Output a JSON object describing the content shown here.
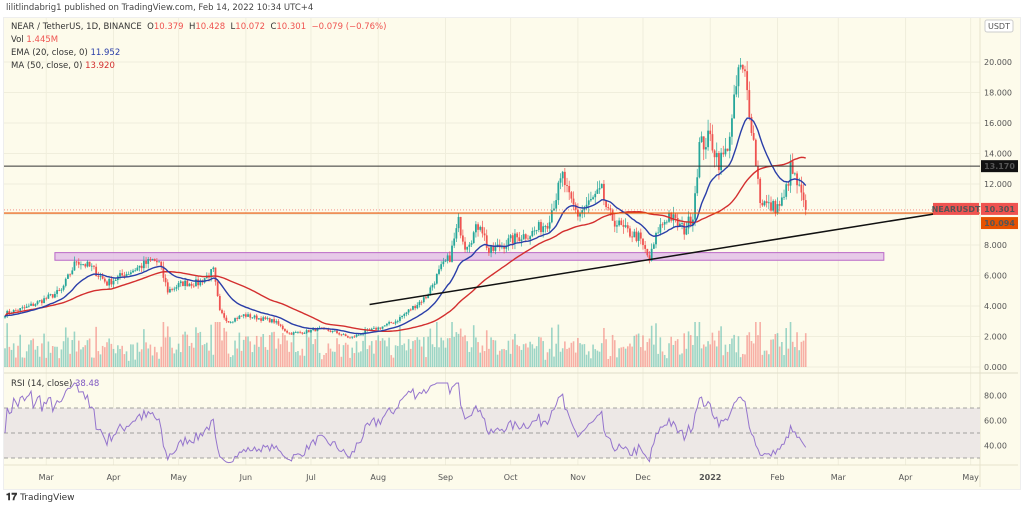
{
  "header": {
    "published": "lilitlindabrig1 published on TradingView.com, Feb 14, 2022 10:34 UTC+4"
  },
  "legend": {
    "symbol": "NEAR / TetherUS, 1D, BINANCE",
    "o_label": "O",
    "o": "10.379",
    "h_label": "H",
    "h": "10.428",
    "l_label": "L",
    "l": "10.072",
    "c_label": "C",
    "c": "10.301",
    "change": "−0.079 (−0.76%)",
    "vol_label": "Vol",
    "vol": "1.445M",
    "ema_label": "EMA (20, close, 0)",
    "ema": "11.952",
    "ma_label": "MA (50, close, 0)",
    "ma": "13.920",
    "rsi_label": "RSI (14, close)",
    "rsi": "38.48"
  },
  "logo": "TradingView",
  "colors": {
    "up": "#26a69a",
    "down": "#ef5350",
    "ema": "#2a3ea8",
    "ma": "#d32f2f",
    "rsi": "#9575cd",
    "zone": "#e1bee7",
    "resistance": "#333333",
    "support": "#e65100"
  },
  "chart_data": {
    "type": "candlestick",
    "price_axis": {
      "unit": "USDT",
      "ticks": [
        "0.000",
        "2.000",
        "4.000",
        "6.000",
        "8.000",
        "12.000",
        "14.000",
        "16.000",
        "18.000",
        "20.000"
      ],
      "range": [
        0,
        21.5
      ]
    },
    "rsi_axis": {
      "ticks": [
        "40.00",
        "60.00",
        "80.00"
      ],
      "bands": [
        30,
        50,
        70
      ]
    },
    "time_ticks": [
      {
        "label": "Mar",
        "date": "2021-03-01"
      },
      {
        "label": "Apr",
        "date": "2021-04-01"
      },
      {
        "label": "May",
        "date": "2021-05-01"
      },
      {
        "label": "Jun",
        "date": "2021-06-01"
      },
      {
        "label": "Jul",
        "date": "2021-07-01"
      },
      {
        "label": "Aug",
        "date": "2021-08-01"
      },
      {
        "label": "Sep",
        "date": "2021-09-01"
      },
      {
        "label": "Oct",
        "date": "2021-10-01"
      },
      {
        "label": "Nov",
        "date": "2021-11-01"
      },
      {
        "label": "Dec",
        "date": "2021-12-01"
      },
      {
        "label": "2022",
        "date": "2022-01-01"
      },
      {
        "label": "Feb",
        "date": "2022-02-01"
      },
      {
        "label": "Mar",
        "date": "2022-03-01"
      },
      {
        "label": "Apr",
        "date": "2022-04-01"
      },
      {
        "label": "May",
        "date": "2022-05-01"
      }
    ],
    "closes": [
      [
        "2021-02-10",
        3.5
      ],
      [
        "2021-02-20",
        3.9
      ],
      [
        "2021-03-01",
        4.5
      ],
      [
        "2021-03-08",
        5.0
      ],
      [
        "2021-03-15",
        7.0
      ],
      [
        "2021-03-22",
        6.5
      ],
      [
        "2021-03-29",
        5.5
      ],
      [
        "2021-04-05",
        6.0
      ],
      [
        "2021-04-12",
        6.5
      ],
      [
        "2021-04-19",
        7.0
      ],
      [
        "2021-04-22",
        6.8
      ],
      [
        "2021-04-26",
        5.0
      ],
      [
        "2021-05-03",
        5.5
      ],
      [
        "2021-05-10",
        5.5
      ],
      [
        "2021-05-17",
        6.3
      ],
      [
        "2021-05-20",
        3.6
      ],
      [
        "2021-05-24",
        3.0
      ],
      [
        "2021-05-31",
        3.4
      ],
      [
        "2021-06-07",
        3.2
      ],
      [
        "2021-06-14",
        3.0
      ],
      [
        "2021-06-21",
        2.2
      ],
      [
        "2021-06-28",
        2.3
      ],
      [
        "2021-07-05",
        2.5
      ],
      [
        "2021-07-12",
        2.3
      ],
      [
        "2021-07-19",
        1.9
      ],
      [
        "2021-07-26",
        2.3
      ],
      [
        "2021-08-02",
        2.6
      ],
      [
        "2021-08-09",
        3.0
      ],
      [
        "2021-08-16",
        3.8
      ],
      [
        "2021-08-23",
        4.6
      ],
      [
        "2021-08-30",
        6.5
      ],
      [
        "2021-09-03",
        7.2
      ],
      [
        "2021-09-07",
        9.5
      ],
      [
        "2021-09-10",
        8.0
      ],
      [
        "2021-09-13",
        8.5
      ],
      [
        "2021-09-17",
        9.5
      ],
      [
        "2021-09-21",
        7.5
      ],
      [
        "2021-09-27",
        8.0
      ],
      [
        "2021-10-04",
        8.5
      ],
      [
        "2021-10-11",
        8.8
      ],
      [
        "2021-10-18",
        9.5
      ],
      [
        "2021-10-25",
        12.5
      ],
      [
        "2021-10-28",
        11.0
      ],
      [
        "2021-11-01",
        10.0
      ],
      [
        "2021-11-08",
        11.0
      ],
      [
        "2021-11-12",
        11.5
      ],
      [
        "2021-11-15",
        10.0
      ],
      [
        "2021-11-22",
        9.0
      ],
      [
        "2021-11-29",
        8.5
      ],
      [
        "2021-12-04",
        7.0
      ],
      [
        "2021-12-08",
        9.0
      ],
      [
        "2021-12-13",
        10.0
      ],
      [
        "2021-12-16",
        9.5
      ],
      [
        "2021-12-20",
        9.0
      ],
      [
        "2021-12-24",
        10.0
      ],
      [
        "2021-12-27",
        14.5
      ],
      [
        "2022-01-01",
        15.0
      ],
      [
        "2022-01-05",
        13.5
      ],
      [
        "2022-01-08",
        14.0
      ],
      [
        "2022-01-11",
        16.0
      ],
      [
        "2022-01-14",
        19.5
      ],
      [
        "2022-01-17",
        19.0
      ],
      [
        "2022-01-20",
        16.0
      ],
      [
        "2022-01-24",
        11.0
      ],
      [
        "2022-01-28",
        10.5
      ],
      [
        "2022-02-01",
        10.5
      ],
      [
        "2022-02-04",
        11.0
      ],
      [
        "2022-02-07",
        13.0
      ],
      [
        "2022-02-10",
        12.0
      ],
      [
        "2022-02-14",
        10.301
      ]
    ],
    "levels": [
      {
        "label": "13.170",
        "price": 13.17
      },
      {
        "label": "10.094",
        "price": 10.094
      }
    ],
    "last_price": {
      "label": "NEARUSDT",
      "value": "10.301"
    },
    "zone": {
      "from": 7.0,
      "to": 7.5,
      "start": "2021-03-05",
      "end": "2022-03-22"
    },
    "trendline": {
      "start": [
        "2021-07-28",
        4.1
      ],
      "end": [
        "2022-04-17",
        10.1
      ]
    }
  }
}
